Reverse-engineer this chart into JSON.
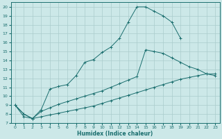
{
  "xlabel": "Humidex (Indice chaleur)",
  "bg_color": "#cce8e8",
  "grid_color": "#aacccc",
  "line_color": "#1a6e6e",
  "xlim": [
    -0.5,
    23.5
  ],
  "ylim": [
    7,
    20.5
  ],
  "xticks": [
    0,
    1,
    2,
    3,
    4,
    5,
    6,
    7,
    8,
    9,
    10,
    11,
    12,
    13,
    14,
    15,
    16,
    17,
    18,
    19,
    20,
    21,
    22,
    23
  ],
  "yticks": [
    7,
    8,
    9,
    10,
    11,
    12,
    13,
    14,
    15,
    16,
    17,
    18,
    19,
    20
  ],
  "line1_x": [
    0,
    1,
    2,
    3,
    4,
    5,
    6,
    7,
    8,
    9,
    10,
    11,
    12,
    13,
    14,
    15,
    16,
    17,
    18,
    19
  ],
  "line1_y": [
    9.0,
    8.0,
    7.5,
    8.5,
    10.8,
    11.1,
    11.3,
    12.3,
    13.8,
    14.1,
    14.9,
    15.5,
    16.5,
    18.3,
    20.0,
    20.0,
    19.5,
    19.0,
    18.3,
    16.5
  ],
  "line2_x": [
    0,
    1,
    2,
    3,
    4,
    5,
    6,
    7,
    8,
    9,
    10,
    11,
    12,
    13,
    14,
    15,
    16,
    17,
    18,
    19,
    20,
    21,
    22,
    23
  ],
  "line2_y": [
    9.0,
    8.0,
    7.5,
    8.3,
    8.7,
    9.1,
    9.4,
    9.7,
    10.0,
    10.3,
    10.6,
    11.0,
    11.4,
    11.8,
    12.2,
    15.2,
    15.0,
    14.8,
    14.3,
    13.8,
    13.3,
    13.0,
    12.5,
    12.3
  ],
  "line3_x": [
    0,
    1,
    2,
    3,
    4,
    5,
    6,
    7,
    8,
    9,
    10,
    11,
    12,
    13,
    14,
    15,
    16,
    17,
    18,
    19,
    20,
    21,
    22,
    23
  ],
  "line3_y": [
    9.0,
    7.7,
    7.5,
    7.7,
    7.9,
    8.1,
    8.3,
    8.5,
    8.7,
    8.9,
    9.2,
    9.5,
    9.8,
    10.1,
    10.4,
    10.7,
    11.0,
    11.3,
    11.6,
    11.9,
    12.1,
    12.3,
    12.5,
    12.5
  ]
}
